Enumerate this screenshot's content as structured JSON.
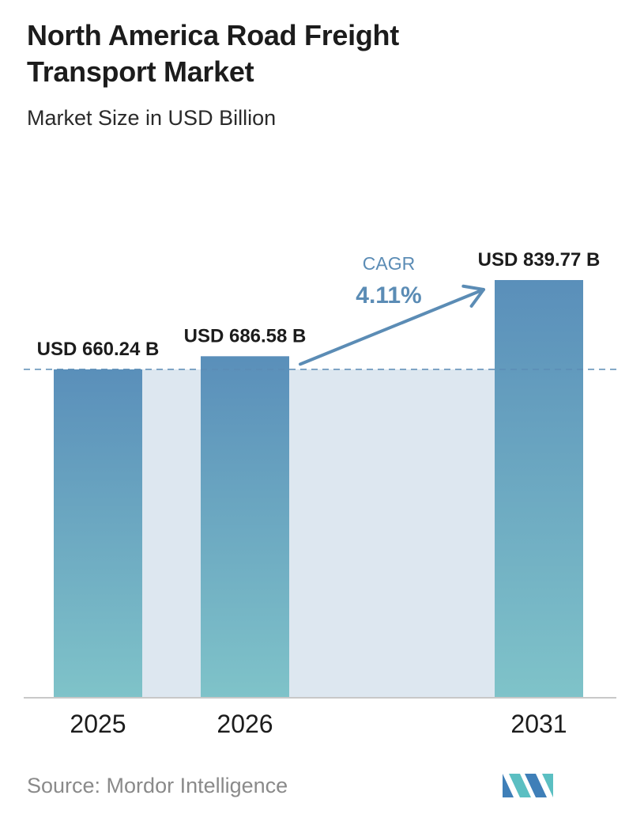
{
  "title": "North America Road Freight Transport Market",
  "subtitle": "Market Size in USD Billion",
  "source": "Source:  Mordor Intelligence",
  "cagr": {
    "label": "CAGR",
    "value": "4.11%"
  },
  "colors": {
    "bar_top": "#5a8fba",
    "bar_bottom": "#7fc3c9",
    "band": "#dde7f0",
    "accent": "#5b8cb5",
    "text": "#1c1c1c"
  },
  "logo_icon": "mordor-intelligence-logo",
  "chart_data": {
    "type": "bar",
    "categories": [
      "2025",
      "2026",
      "2031"
    ],
    "values": [
      660.24,
      686.58,
      839.77
    ],
    "data_labels": [
      "USD 660.24 B",
      "USD 686.58 B",
      "USD 839.77 B"
    ],
    "unit": "USD Billion",
    "title": "North America Road Freight Transport Market",
    "subtitle": "Market Size in USD Billion",
    "xlabel": "",
    "ylabel": "",
    "ylim": [
      0,
      1000
    ],
    "grid": false,
    "legend": "none"
  }
}
